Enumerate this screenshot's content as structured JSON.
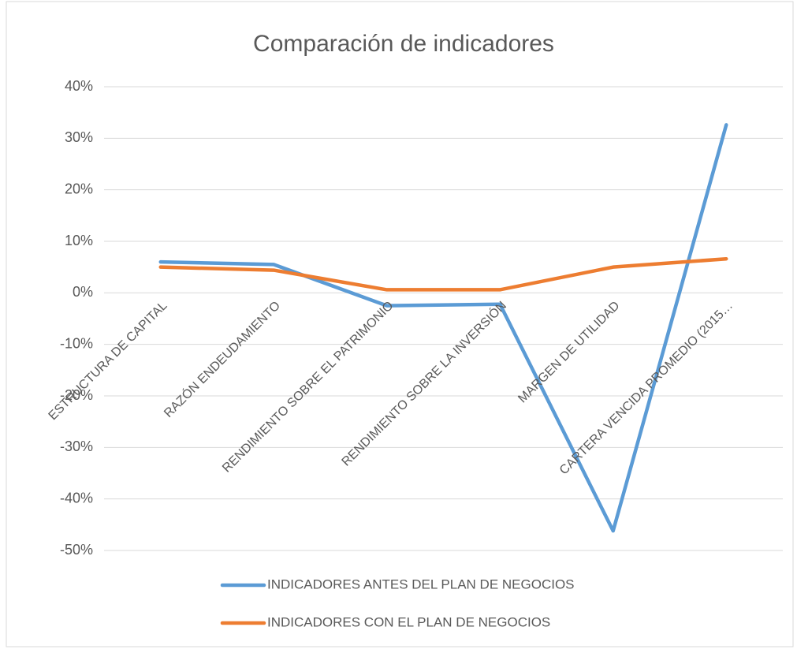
{
  "chart_data": {
    "type": "line",
    "title": "Comparación de indicadores",
    "categories": [
      "ESTRUCTURA DE CAPITAL",
      "RAZÓN ENDEUDAMIENTO",
      "RENDIMIENTO SOBRE EL PATRIMONIO",
      "RENDIMIENTO SOBRE LA INVERSIÓN",
      "MARGEN DE UTILIDAD",
      "CARTERA VENCIDA PROMEDIO (2015…"
    ],
    "series": [
      {
        "name": "INDICADORES ANTES DEL PLAN DE NEGOCIOS",
        "color": "#5b9bd5",
        "values": [
          6,
          5.5,
          -2.5,
          -2.2,
          -46.2,
          32.6
        ]
      },
      {
        "name": "INDICADORES CON EL PLAN DE NEGOCIOS",
        "color": "#ed7d31",
        "values": [
          5,
          4.4,
          0.6,
          0.6,
          5,
          6.6
        ]
      }
    ],
    "ylim": [
      -50,
      40
    ],
    "yticks": [
      {
        "value": -50,
        "label": "-50%"
      },
      {
        "value": -40,
        "label": "-40%"
      },
      {
        "value": -30,
        "label": "-30%"
      },
      {
        "value": -20,
        "label": "-20%"
      },
      {
        "value": -10,
        "label": "-10%"
      },
      {
        "value": 0,
        "label": "0%"
      },
      {
        "value": 10,
        "label": "10%"
      },
      {
        "value": 20,
        "label": "20%"
      },
      {
        "value": 30,
        "label": "30%"
      },
      {
        "value": 40,
        "label": "40%"
      }
    ],
    "grid": true,
    "legend": "bottom"
  }
}
